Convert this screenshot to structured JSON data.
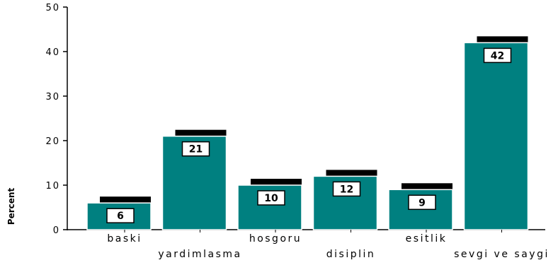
{
  "chart_data": {
    "type": "bar",
    "title": "",
    "xlabel": "",
    "ylabel": "Percent",
    "categories": [
      "baski",
      "yardimlasma",
      "hosgoru",
      "disiplin",
      "esitlik",
      "sevgi ve saygi"
    ],
    "values": [
      6,
      21,
      10,
      12,
      9,
      42
    ],
    "data_labels": [
      "6",
      "21",
      "10",
      "12",
      "9",
      "42"
    ],
    "ylim": [
      0,
      50
    ],
    "yticks": [
      0,
      10,
      20,
      30,
      40,
      50
    ],
    "ytick_labels": [
      "0",
      "10",
      "20",
      "30",
      "40",
      "50"
    ],
    "grid": false,
    "legend": "none",
    "bar_color": "#008080",
    "shadow_color": "#000000"
  }
}
